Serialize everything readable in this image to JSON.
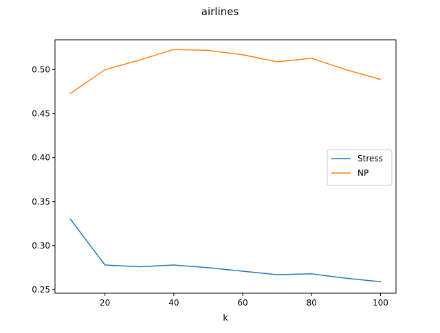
{
  "chart_data": {
    "type": "line",
    "title": "airlines",
    "xlabel": "k",
    "ylabel": "",
    "x": [
      10,
      20,
      30,
      40,
      50,
      60,
      70,
      80,
      90,
      100
    ],
    "xlim": [
      5.5,
      104.5
    ],
    "ylim": [
      0.246,
      0.534
    ],
    "xticks": [
      20,
      40,
      60,
      80,
      100
    ],
    "yticks": [
      0.25,
      0.3,
      0.35,
      0.4,
      0.45,
      0.5
    ],
    "xtick_labels": [
      "20",
      "40",
      "60",
      "80",
      "100"
    ],
    "ytick_labels": [
      "0.25",
      "0.30",
      "0.35",
      "0.40",
      "0.45",
      "0.50"
    ],
    "grid": false,
    "legend_position": "center-right",
    "series": [
      {
        "name": "Stress",
        "color": "#1f77b4",
        "values": [
          0.33,
          0.278,
          0.276,
          0.278,
          0.275,
          0.271,
          0.267,
          0.268,
          0.263,
          0.259
        ]
      },
      {
        "name": "NP",
        "color": "#ff7f0e",
        "values": [
          0.473,
          0.5,
          0.511,
          0.523,
          0.522,
          0.517,
          0.509,
          0.513,
          0.5,
          0.489
        ]
      }
    ]
  }
}
